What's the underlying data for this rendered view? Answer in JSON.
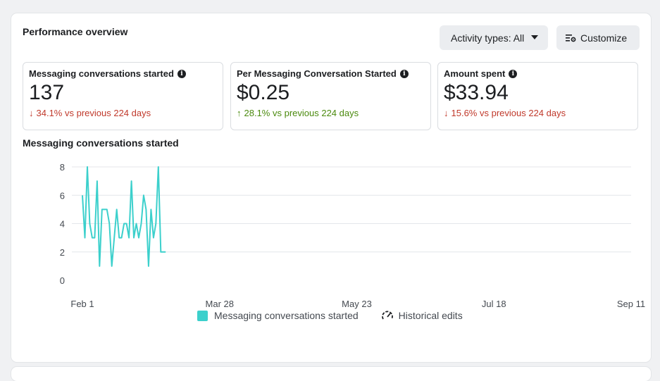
{
  "header": {
    "title": "Performance overview",
    "activity_button": "Activity types: All",
    "customize_button": "Customize"
  },
  "metrics": [
    {
      "label": "Messaging conversations started",
      "value": "137",
      "arrow": "↓",
      "change": "34.1% vs previous 224 days",
      "direction": "down"
    },
    {
      "label": "Per Messaging Conversation Started",
      "value": "$0.25",
      "arrow": "↑",
      "change": "28.1% vs previous 224 days",
      "direction": "up"
    },
    {
      "label": "Amount spent",
      "value": "$33.94",
      "arrow": "↓",
      "change": "15.6% vs previous 224 days",
      "direction": "down"
    }
  ],
  "colors": {
    "series": "#3cd0cc",
    "down": "#c0392b",
    "up": "#4b8a0e"
  },
  "chart_section_title": "Messaging conversations started",
  "chart_data": {
    "type": "line",
    "title": "Messaging conversations started",
    "xlabel": "",
    "ylabel": "",
    "ylim": [
      0,
      8
    ],
    "yticks": [
      0,
      2,
      4,
      6,
      8
    ],
    "xticks": [
      {
        "label": "Feb 1",
        "day": 0
      },
      {
        "label": "Mar 28",
        "day": 56
      },
      {
        "label": "May 23",
        "day": 112
      },
      {
        "label": "Jul 18",
        "day": 168
      },
      {
        "label": "Sep 11",
        "day": 224
      }
    ],
    "grid": true,
    "series": [
      {
        "name": "Messaging conversations started",
        "x": [
          0,
          1,
          2,
          3,
          4,
          5,
          6,
          7,
          8,
          9,
          10,
          11,
          12,
          13,
          14,
          15,
          16,
          17,
          18,
          19,
          20,
          21,
          22,
          23,
          24,
          25,
          26,
          27,
          28,
          29,
          30,
          31,
          32,
          33,
          34
        ],
        "values": [
          6,
          3,
          8,
          4,
          3,
          3,
          7,
          1,
          5,
          5,
          5,
          4,
          1,
          3,
          5,
          3,
          3,
          4,
          4,
          3,
          7,
          3,
          4,
          3,
          4,
          6,
          5,
          1,
          5,
          3,
          4,
          8,
          2,
          2,
          2
        ]
      }
    ],
    "legend": [
      "Messaging conversations started",
      "Historical edits"
    ],
    "legend_position": "bottom"
  }
}
